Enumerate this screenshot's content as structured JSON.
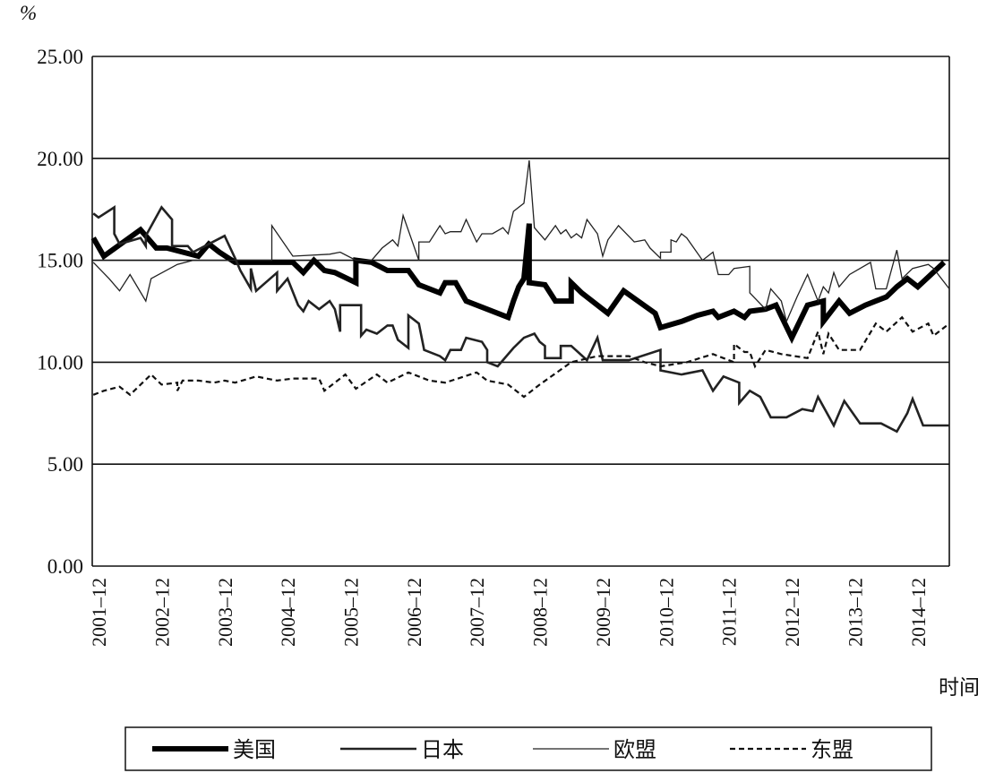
{
  "chart_data": {
    "type": "line",
    "title": "",
    "ylabel": "%",
    "xlabel": "时间",
    "ylim": [
      0,
      25
    ],
    "yticks": [
      "0.00",
      "5.00",
      "10.00",
      "15.00",
      "20.00",
      "25.00"
    ],
    "ytick_values": [
      0,
      5,
      10,
      15,
      20,
      25
    ],
    "x_unit": "months since 2001-12",
    "xlim": [
      -1.2,
      162
    ],
    "xticks": [
      "2001–12",
      "2002–12",
      "2003–12",
      "2004–12",
      "2005–12",
      "2006–12",
      "2007–12",
      "2008–12",
      "2009–12",
      "2010–12",
      "2011–12",
      "2012–12",
      "2013–12",
      "2014–12"
    ],
    "xtick_values": [
      0,
      12,
      24,
      36,
      48,
      60,
      72,
      84,
      96,
      108,
      120,
      132,
      144,
      156
    ],
    "grid": "horizontal",
    "legend_position": "bottom",
    "series": [
      {
        "name": "美国",
        "style": "thick",
        "points": [
          [
            -1,
            16.1
          ],
          [
            1,
            15.2
          ],
          [
            8,
            16.5
          ],
          [
            11,
            15.6
          ],
          [
            13,
            15.6
          ],
          [
            19,
            15.2
          ],
          [
            21,
            15.8
          ],
          [
            23,
            15.4
          ],
          [
            26,
            14.9
          ],
          [
            37,
            14.9
          ],
          [
            39,
            14.4
          ],
          [
            41,
            15.0
          ],
          [
            43,
            14.5
          ],
          [
            45,
            14.4
          ],
          [
            49,
            13.9
          ],
          [
            49,
            15.0
          ],
          [
            52,
            14.9
          ],
          [
            55,
            14.5
          ],
          [
            59,
            14.5
          ],
          [
            61,
            13.8
          ],
          [
            65,
            13.4
          ],
          [
            66,
            13.9
          ],
          [
            68,
            13.9
          ],
          [
            70,
            13.0
          ],
          [
            78,
            12.2
          ],
          [
            79,
            13.0
          ],
          [
            80,
            13.7
          ],
          [
            81,
            14.1
          ],
          [
            82,
            16.8
          ],
          [
            82,
            13.9
          ],
          [
            85,
            13.8
          ],
          [
            87,
            13.0
          ],
          [
            90,
            13.0
          ],
          [
            90,
            13.9
          ],
          [
            92,
            13.4
          ],
          [
            97,
            12.4
          ],
          [
            100,
            13.5
          ],
          [
            106,
            12.4
          ],
          [
            107,
            11.7
          ],
          [
            111,
            12.0
          ],
          [
            114,
            12.3
          ],
          [
            117,
            12.5
          ],
          [
            118,
            12.2
          ],
          [
            121,
            12.5
          ],
          [
            123,
            12.2
          ],
          [
            124,
            12.5
          ],
          [
            127,
            12.6
          ],
          [
            129,
            12.8
          ],
          [
            132,
            11.2
          ],
          [
            135,
            12.8
          ],
          [
            138,
            13.0
          ],
          [
            138,
            12.0
          ],
          [
            141,
            13.0
          ],
          [
            143,
            12.4
          ],
          [
            146,
            12.8
          ],
          [
            148,
            13.0
          ],
          [
            150,
            13.2
          ],
          [
            152,
            13.7
          ],
          [
            154,
            14.1
          ],
          [
            156,
            13.7
          ],
          [
            161,
            14.9
          ]
        ]
      },
      {
        "name": "日本",
        "style": "medium",
        "points": [
          [
            -1,
            17.3
          ],
          [
            0,
            17.1
          ],
          [
            3,
            17.6
          ],
          [
            3,
            16.3
          ],
          [
            4,
            15.8
          ],
          [
            8,
            16.1
          ],
          [
            9,
            15.7
          ],
          [
            9,
            16.2
          ],
          [
            12,
            17.6
          ],
          [
            14,
            17.0
          ],
          [
            14,
            15.7
          ],
          [
            17,
            15.7
          ],
          [
            18,
            15.4
          ],
          [
            24,
            16.2
          ],
          [
            26,
            15.1
          ],
          [
            27,
            14.5
          ],
          [
            29,
            13.6
          ],
          [
            29,
            14.6
          ],
          [
            30,
            13.5
          ],
          [
            34,
            14.4
          ],
          [
            34,
            13.5
          ],
          [
            36,
            14.1
          ],
          [
            38,
            12.8
          ],
          [
            39,
            12.5
          ],
          [
            40,
            13.0
          ],
          [
            42,
            12.6
          ],
          [
            44,
            13.0
          ],
          [
            45,
            12.6
          ],
          [
            46,
            11.5
          ],
          [
            46,
            12.8
          ],
          [
            48,
            12.8
          ],
          [
            50,
            12.8
          ],
          [
            50,
            11.3
          ],
          [
            51,
            11.6
          ],
          [
            53,
            11.4
          ],
          [
            55,
            11.8
          ],
          [
            56,
            11.8
          ],
          [
            57,
            11.1
          ],
          [
            59,
            10.7
          ],
          [
            59,
            12.3
          ],
          [
            61,
            11.9
          ],
          [
            62,
            10.6
          ],
          [
            65,
            10.3
          ],
          [
            66,
            10.1
          ],
          [
            67,
            10.6
          ],
          [
            69,
            10.6
          ],
          [
            70,
            11.2
          ],
          [
            73,
            11.0
          ],
          [
            74,
            10.6
          ],
          [
            74,
            10.0
          ],
          [
            76,
            9.8
          ],
          [
            79,
            10.7
          ],
          [
            81,
            11.2
          ],
          [
            83,
            11.4
          ],
          [
            84,
            11.0
          ],
          [
            85,
            10.8
          ],
          [
            85,
            10.2
          ],
          [
            88,
            10.2
          ],
          [
            88,
            10.8
          ],
          [
            90,
            10.8
          ],
          [
            93,
            10.1
          ],
          [
            95,
            11.2
          ],
          [
            96,
            10.1
          ],
          [
            101,
            10.1
          ],
          [
            107,
            10.6
          ],
          [
            107,
            9.6
          ],
          [
            111,
            9.4
          ],
          [
            115,
            9.6
          ],
          [
            117,
            8.6
          ],
          [
            119,
            9.3
          ],
          [
            122,
            9.0
          ],
          [
            122,
            8.0
          ],
          [
            124,
            8.6
          ],
          [
            126,
            8.3
          ],
          [
            128,
            7.3
          ],
          [
            131,
            7.3
          ],
          [
            134,
            7.7
          ],
          [
            136,
            7.6
          ],
          [
            137,
            8.3
          ],
          [
            140,
            6.9
          ],
          [
            142,
            8.1
          ],
          [
            145,
            7.0
          ],
          [
            149,
            7.0
          ],
          [
            152,
            6.6
          ],
          [
            154,
            7.5
          ],
          [
            155,
            8.2
          ],
          [
            157,
            6.9
          ],
          [
            162,
            6.9
          ]
        ]
      },
      {
        "name": "欧盟",
        "style": "thin",
        "points": [
          [
            -1,
            14.9
          ],
          [
            2,
            14.1
          ],
          [
            4,
            13.5
          ],
          [
            6,
            14.3
          ],
          [
            9,
            13.0
          ],
          [
            10,
            14.1
          ],
          [
            15,
            14.8
          ],
          [
            18,
            15.0
          ],
          [
            33,
            15.0
          ],
          [
            33,
            16.7
          ],
          [
            37,
            15.2
          ],
          [
            44,
            15.3
          ],
          [
            46,
            15.4
          ],
          [
            49,
            15.0
          ],
          [
            52,
            15.0
          ],
          [
            54,
            15.6
          ],
          [
            56,
            16.0
          ],
          [
            57,
            15.7
          ],
          [
            58,
            17.2
          ],
          [
            61,
            15.0
          ],
          [
            61,
            15.9
          ],
          [
            63,
            15.9
          ],
          [
            65,
            16.7
          ],
          [
            66,
            16.3
          ],
          [
            67,
            16.4
          ],
          [
            69,
            16.4
          ],
          [
            70,
            17.0
          ],
          [
            72,
            15.9
          ],
          [
            73,
            16.3
          ],
          [
            75,
            16.3
          ],
          [
            77,
            16.6
          ],
          [
            78,
            16.3
          ],
          [
            79,
            17.4
          ],
          [
            81,
            17.8
          ],
          [
            82,
            19.9
          ],
          [
            83,
            16.6
          ],
          [
            85,
            16.0
          ],
          [
            87,
            16.7
          ],
          [
            88,
            16.3
          ],
          [
            89,
            16.5
          ],
          [
            90,
            16.1
          ],
          [
            91,
            16.3
          ],
          [
            92,
            16.1
          ],
          [
            93,
            17.0
          ],
          [
            95,
            16.3
          ],
          [
            96,
            15.2
          ],
          [
            97,
            16.0
          ],
          [
            99,
            16.7
          ],
          [
            102,
            15.9
          ],
          [
            104,
            16.0
          ],
          [
            105,
            15.6
          ],
          [
            107,
            15.1
          ],
          [
            107,
            15.4
          ],
          [
            109,
            15.4
          ],
          [
            109,
            16.0
          ],
          [
            110,
            15.9
          ],
          [
            111,
            16.3
          ],
          [
            112,
            16.1
          ],
          [
            115,
            15.0
          ],
          [
            117,
            15.4
          ],
          [
            118,
            14.3
          ],
          [
            120,
            14.3
          ],
          [
            121,
            14.6
          ],
          [
            124,
            14.7
          ],
          [
            124,
            13.4
          ],
          [
            127,
            12.6
          ],
          [
            128,
            13.6
          ],
          [
            130,
            13.0
          ],
          [
            131,
            12.0
          ],
          [
            133,
            13.2
          ],
          [
            135,
            14.3
          ],
          [
            137,
            13.0
          ],
          [
            138,
            13.7
          ],
          [
            139,
            13.4
          ],
          [
            140,
            14.4
          ],
          [
            141,
            13.7
          ],
          [
            143,
            14.3
          ],
          [
            147,
            14.9
          ],
          [
            148,
            13.6
          ],
          [
            150,
            13.6
          ],
          [
            152,
            15.5
          ],
          [
            153,
            14.1
          ],
          [
            155,
            14.6
          ],
          [
            158,
            14.8
          ],
          [
            159,
            14.6
          ],
          [
            162,
            13.6
          ]
        ]
      },
      {
        "name": "东盟",
        "style": "dashed",
        "points": [
          [
            -1,
            8.4
          ],
          [
            1,
            8.6
          ],
          [
            4,
            8.8
          ],
          [
            6,
            8.4
          ],
          [
            10,
            9.4
          ],
          [
            12,
            8.9
          ],
          [
            15,
            9.0
          ],
          [
            15,
            8.6
          ],
          [
            16,
            9.1
          ],
          [
            19,
            9.1
          ],
          [
            22,
            9.0
          ],
          [
            24,
            9.1
          ],
          [
            26,
            9.0
          ],
          [
            30,
            9.3
          ],
          [
            34,
            9.1
          ],
          [
            37,
            9.2
          ],
          [
            42,
            9.2
          ],
          [
            43,
            8.6
          ],
          [
            47,
            9.4
          ],
          [
            49,
            8.7
          ],
          [
            53,
            9.4
          ],
          [
            55,
            9.0
          ],
          [
            59,
            9.5
          ],
          [
            63,
            9.1
          ],
          [
            66,
            9.0
          ],
          [
            72,
            9.5
          ],
          [
            74,
            9.1
          ],
          [
            78,
            8.9
          ],
          [
            81,
            8.3
          ],
          [
            84,
            8.9
          ],
          [
            90,
            10.0
          ],
          [
            95,
            10.3
          ],
          [
            101,
            10.3
          ],
          [
            104,
            10.0
          ],
          [
            107,
            9.8
          ],
          [
            112,
            10.0
          ],
          [
            117,
            10.4
          ],
          [
            121,
            10.0
          ],
          [
            121,
            10.9
          ],
          [
            123,
            10.5
          ],
          [
            124,
            10.5
          ],
          [
            125,
            9.8
          ],
          [
            127,
            10.6
          ],
          [
            130,
            10.4
          ],
          [
            135,
            10.2
          ],
          [
            137,
            11.5
          ],
          [
            138,
            10.4
          ],
          [
            139,
            11.4
          ],
          [
            141,
            10.6
          ],
          [
            145,
            10.6
          ],
          [
            148,
            11.9
          ],
          [
            150,
            11.5
          ],
          [
            153,
            12.2
          ],
          [
            155,
            11.5
          ],
          [
            158,
            11.9
          ],
          [
            159,
            11.3
          ],
          [
            162,
            11.9
          ]
        ]
      }
    ]
  }
}
